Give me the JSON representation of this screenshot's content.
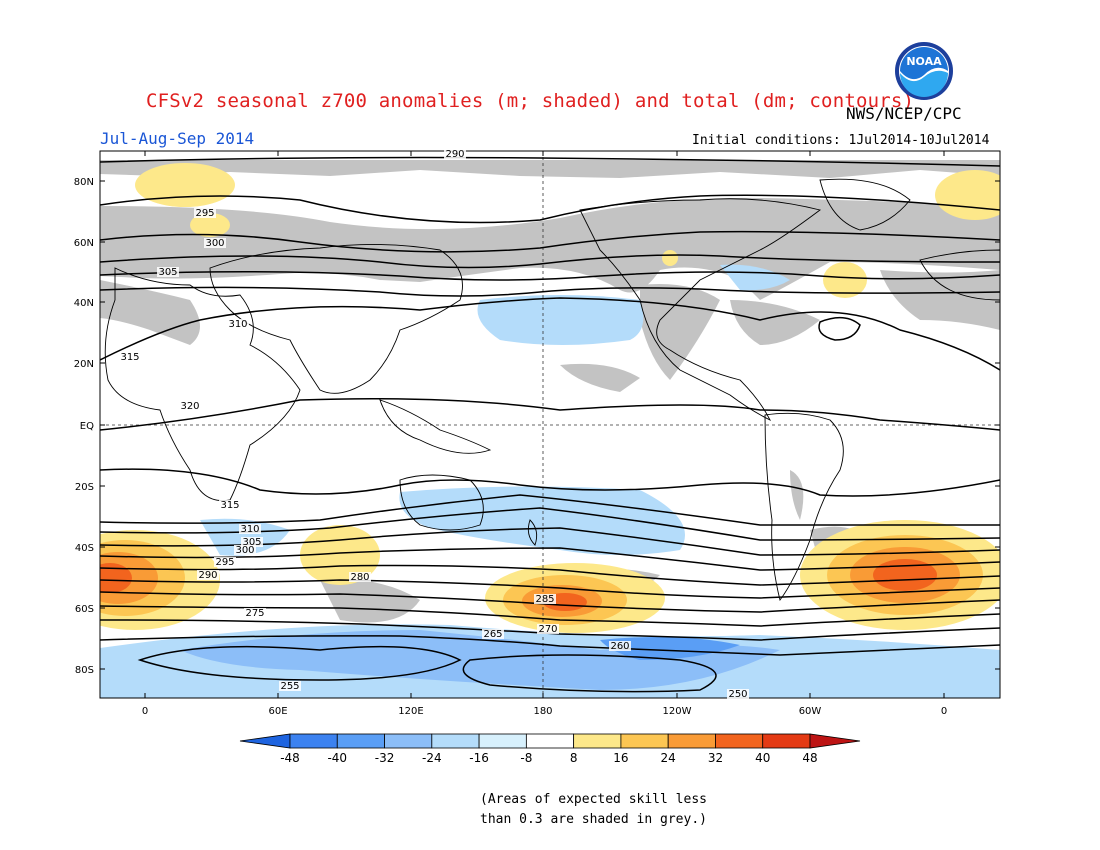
{
  "header": {
    "title": "CFSv2 seasonal z700 anomalies (m; shaded) and total (dm; contours)",
    "agency": "NWS/NCEP/CPC",
    "season": "Jul-Aug-Sep 2014",
    "initial_conditions": "Initial conditions: 1Jul2014-10Jul2014",
    "logo": {
      "icon": "noaa-logo-icon",
      "text": "NOAA"
    }
  },
  "map": {
    "lat_ticks": [
      "80N",
      "60N",
      "40N",
      "20N",
      "EQ",
      "20S",
      "40S",
      "60S",
      "80S"
    ],
    "lon_ticks": [
      "0",
      "60E",
      "120E",
      "180",
      "120W",
      "60W",
      "0"
    ],
    "contour_labels": [
      "290",
      "295",
      "300",
      "305",
      "310",
      "315",
      "320",
      "315",
      "310",
      "305",
      "300",
      "295",
      "290",
      "285",
      "280",
      "275",
      "270",
      "265",
      "260",
      "255",
      "250"
    ]
  },
  "colorbar": {
    "labels": [
      "-48",
      "-40",
      "-32",
      "-24",
      "-16",
      "-8",
      "8",
      "16",
      "24",
      "32",
      "40",
      "48"
    ],
    "colors": [
      "#1e64e0",
      "#3c82f0",
      "#5a9ef5",
      "#8cbef8",
      "#b4dcfa",
      "#d7f0fc",
      "#ffffff",
      "#fde88a",
      "#fcc653",
      "#f99b36",
      "#f2641e",
      "#e43a14",
      "#bd1414"
    ]
  },
  "footnote": {
    "line1": "(Areas of expected skill less",
    "line2": "than 0.3 are shaded in grey.)"
  },
  "colors": {
    "title": "#e02020",
    "season": "#1a56d6",
    "skill_grey": "#c3c3c3"
  }
}
